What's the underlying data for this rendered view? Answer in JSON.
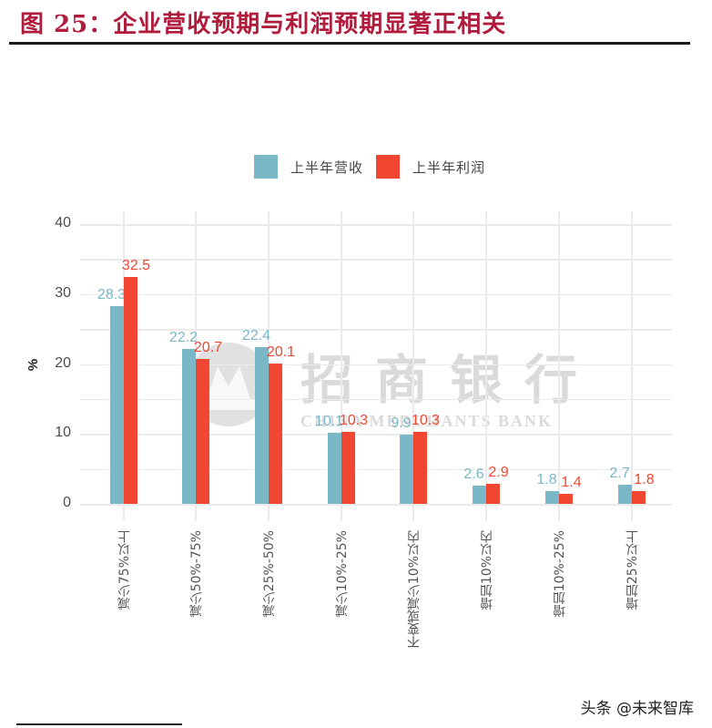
{
  "title": "图 25：企业营收预期与利润预期显著正相关",
  "source": "头条 @未来智库",
  "watermark": {
    "cn": "招商银行",
    "en": "CHINA MERCHANTS BANK"
  },
  "colors": {
    "revenue": "#7ab7c7",
    "profit": "#f04632",
    "title": "#b01c3c"
  },
  "legend": [
    {
      "label": "上半年营收",
      "color": "#7ab7c7"
    },
    {
      "label": "上半年利润",
      "color": "#f04632"
    }
  ],
  "axis": {
    "ylabel": "%",
    "yticks": [
      "0",
      "10",
      "20",
      "30",
      "40"
    ]
  },
  "chart_data": {
    "type": "bar",
    "title": "图 25：企业营收预期与利润预期显著正相关",
    "xlabel": "",
    "ylabel": "%",
    "ylim": [
      0,
      40
    ],
    "grid": true,
    "legend_position": "top",
    "categories": [
      "减少75%以上",
      "减少50%-75%",
      "减少25%-50%",
      "减少10%-25%",
      "不变或减少10%以内",
      "增加10%以内",
      "增加10%-25%",
      "增加25%以上"
    ],
    "series": [
      {
        "name": "上半年营收",
        "values": [
          28.3,
          22.2,
          22.4,
          10.1,
          9.9,
          2.6,
          1.8,
          2.7
        ]
      },
      {
        "name": "上半年利润",
        "values": [
          32.5,
          20.7,
          20.1,
          10.3,
          10.3,
          2.9,
          1.4,
          1.8
        ]
      }
    ]
  }
}
